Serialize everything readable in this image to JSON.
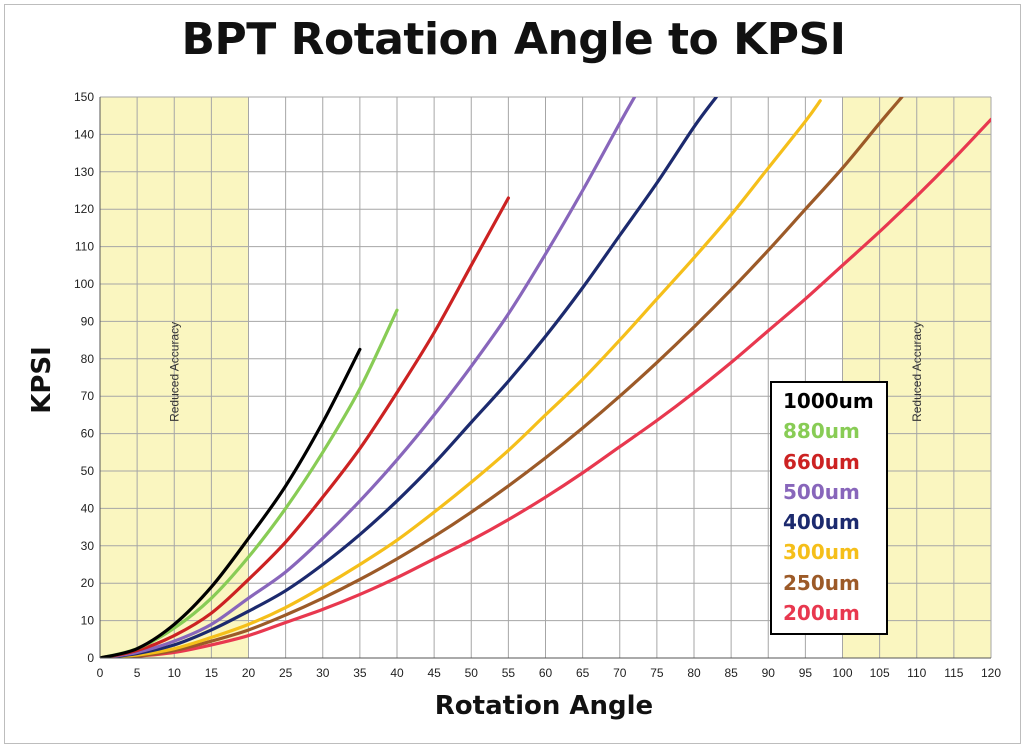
{
  "chart_data": {
    "type": "line",
    "title": "BPT Rotation Angle to KPSI",
    "xlabel": "Rotation Angle",
    "ylabel": "KPSI",
    "xlim": [
      0,
      120
    ],
    "ylim": [
      0,
      150
    ],
    "x_ticks": [
      0,
      5,
      10,
      15,
      20,
      25,
      30,
      35,
      40,
      45,
      50,
      55,
      60,
      65,
      70,
      75,
      80,
      85,
      90,
      95,
      100,
      105,
      110,
      115,
      120
    ],
    "y_ticks": [
      0,
      10,
      20,
      30,
      40,
      50,
      60,
      70,
      80,
      90,
      100,
      110,
      120,
      130,
      140,
      150
    ],
    "grid": true,
    "legend_placement": "right, inside plot",
    "shaded_regions": [
      {
        "x_start": 0,
        "x_end": 20,
        "label": "Reduced Accuracy",
        "color": "#faf6c0"
      },
      {
        "x_start": 100,
        "x_end": 120,
        "label": "Reduced Accuracy",
        "color": "#faf6c0"
      }
    ],
    "series": [
      {
        "name": "1000um",
        "color": "#000000",
        "x": [
          0,
          5,
          10,
          15,
          20,
          25,
          30,
          35
        ],
        "y": [
          0,
          2.5,
          9,
          19,
          32,
          46,
          63,
          82.5
        ]
      },
      {
        "name": "880um",
        "color": "#88cc55",
        "x": [
          0,
          5,
          10,
          15,
          20,
          25,
          30,
          35,
          40
        ],
        "y": [
          0,
          2.5,
          8,
          16,
          27,
          40,
          55,
          72,
          93
        ]
      },
      {
        "name": "660um",
        "color": "#cc2222",
        "x": [
          0,
          5,
          10,
          15,
          20,
          25,
          30,
          35,
          40,
          45,
          50,
          55
        ],
        "y": [
          0,
          2,
          6,
          12,
          21,
          31,
          43,
          56,
          71,
          87,
          105,
          123
        ]
      },
      {
        "name": "500um",
        "color": "#8866bb",
        "x": [
          0,
          5,
          10,
          15,
          20,
          25,
          30,
          35,
          40,
          45,
          50,
          55,
          60,
          65,
          70,
          72
        ],
        "y": [
          0,
          1.5,
          4.5,
          9,
          16,
          23,
          32,
          42,
          53,
          65,
          78,
          92,
          108,
          125,
          143,
          150
        ]
      },
      {
        "name": "400um",
        "color": "#1c2a6e",
        "x": [
          0,
          5,
          10,
          15,
          20,
          25,
          30,
          35,
          40,
          45,
          50,
          55,
          60,
          65,
          70,
          75,
          80,
          83
        ],
        "y": [
          0,
          1.2,
          3.5,
          7.5,
          12.5,
          18,
          25,
          33,
          42,
          52,
          63,
          74,
          86,
          99,
          113,
          127,
          142,
          150
        ]
      },
      {
        "name": "300um",
        "color": "#f5bf1a",
        "x": [
          0,
          5,
          10,
          15,
          20,
          25,
          30,
          35,
          40,
          45,
          50,
          55,
          60,
          65,
          70,
          75,
          80,
          85,
          90,
          95,
          97
        ],
        "y": [
          0,
          0.8,
          2.5,
          5.5,
          9,
          13.5,
          19,
          25,
          31.5,
          39,
          47,
          55.5,
          65,
          74.5,
          85,
          96,
          107,
          118.5,
          131,
          143.5,
          149
        ]
      },
      {
        "name": "250um",
        "color": "#9c5a28",
        "x": [
          0,
          5,
          10,
          15,
          20,
          25,
          30,
          35,
          40,
          45,
          50,
          55,
          60,
          65,
          70,
          75,
          80,
          85,
          90,
          95,
          100,
          105,
          108
        ],
        "y": [
          0,
          0.5,
          2,
          4.5,
          7.5,
          11.5,
          16,
          21,
          26.5,
          32.5,
          39,
          46,
          53.5,
          61.5,
          70,
          79,
          88.5,
          98.5,
          109,
          120,
          131,
          143,
          150
        ]
      },
      {
        "name": "200um",
        "color": "#e8384f",
        "x": [
          0,
          5,
          10,
          15,
          20,
          25,
          30,
          35,
          40,
          45,
          50,
          55,
          60,
          65,
          70,
          75,
          80,
          85,
          90,
          95,
          100,
          105,
          110,
          115,
          120
        ],
        "y": [
          0,
          0.5,
          1.5,
          3.5,
          6,
          9.5,
          13,
          17,
          21.5,
          26.5,
          31.5,
          37,
          43,
          49.5,
          56.5,
          63.5,
          71,
          79,
          87.5,
          96,
          105,
          114,
          123.5,
          133.5,
          144
        ]
      }
    ]
  }
}
